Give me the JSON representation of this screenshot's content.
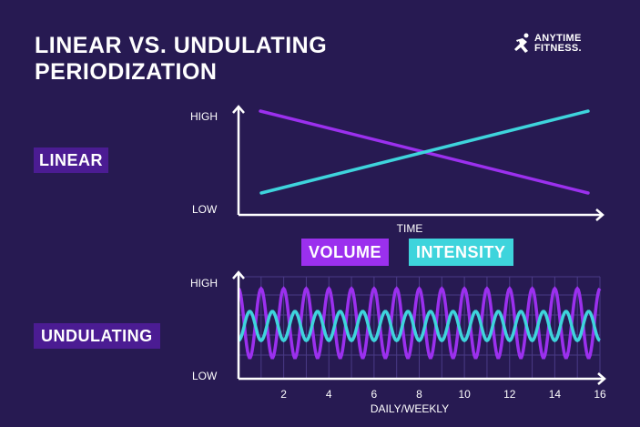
{
  "title": {
    "line1": "LINEAR VS. UNDULATING",
    "line2": "PERIODIZATION"
  },
  "logo": {
    "line1": "ANYTIME",
    "line2": "FITNESS."
  },
  "sections": {
    "linear": "LINEAR",
    "undulating": "UNDULATING"
  },
  "colors": {
    "background": "#271a52",
    "volume": "#9b30ee",
    "intensity": "#3ed4dc",
    "grid": "#4a3a86",
    "label_bg": "#4b1c93"
  },
  "chart_data": [
    {
      "type": "line",
      "xlabel": "TIME",
      "ytick_labels": [
        "HIGH",
        "LOW"
      ],
      "series": [
        {
          "name": "VOLUME",
          "values": [
            "HIGH",
            "LOW"
          ],
          "trend": "decreasing"
        },
        {
          "name": "INTENSITY",
          "values": [
            "LOW",
            "HIGH"
          ],
          "trend": "increasing"
        }
      ]
    },
    {
      "type": "line",
      "xlabel": "DAILY/WEEKLY",
      "x_ticks": [
        2,
        4,
        6,
        8,
        10,
        12,
        14,
        16
      ],
      "xlim": [
        0,
        16
      ],
      "ytick_labels": [
        "HIGH",
        "LOW"
      ],
      "grid": true,
      "series": [
        {
          "name": "VOLUME",
          "pattern": "oscillating",
          "cycles": 16,
          "amplitude": "large"
        },
        {
          "name": "INTENSITY",
          "pattern": "oscillating",
          "cycles": 16,
          "amplitude": "small"
        }
      ]
    }
  ]
}
